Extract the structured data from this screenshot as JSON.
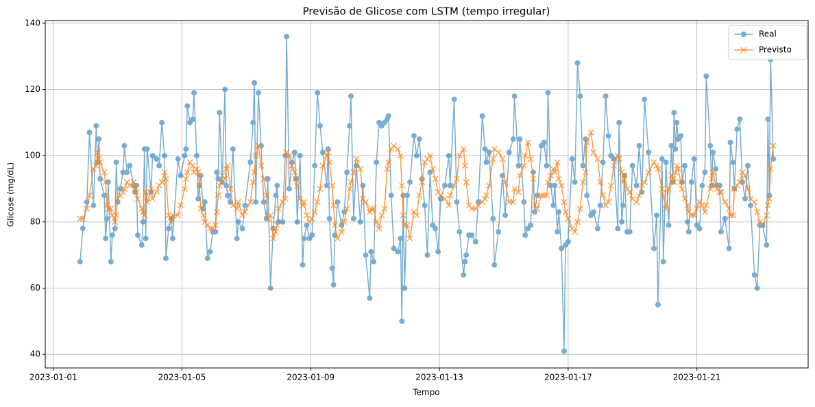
{
  "chart_data": {
    "type": "line",
    "title": "Previsão de Glicose com LSTM (tempo irregular)",
    "xlabel": "Tempo",
    "ylabel": "Glicose (mg/dL)",
    "x": [
      "2023-01-01 20:00",
      "2023-01-01 22:00",
      "2023-01-02 01:00",
      "2023-01-02 03:00",
      "2023-01-02 06:00",
      "2023-01-02 08:00",
      "2023-01-02 09:00",
      "2023-01-02 10:00",
      "2023-01-02 11:00",
      "2023-01-02 14:00",
      "2023-01-02 15:00",
      "2023-01-02 16:00",
      "2023-01-02 17:00",
      "2023-01-02 19:00",
      "2023-01-02 20:00",
      "2023-01-02 22:00",
      "2023-01-02 23:00",
      "2023-01-03 00:00",
      "2023-01-03 02:00",
      "2023-01-03 04:00",
      "2023-01-03 05:00",
      "2023-01-03 07:00",
      "2023-01-03 09:00",
      "2023-01-03 12:00",
      "2023-01-03 13:00",
      "2023-01-03 14:00",
      "2023-01-03 15:00",
      "2023-01-03 18:00",
      "2023-01-03 19:00",
      "2023-01-03 20:00",
      "2023-01-03 21:00",
      "2023-01-03 22:00",
      "2023-01-04 01:00",
      "2023-01-04 02:00",
      "2023-01-04 05:00",
      "2023-01-04 07:00",
      "2023-01-04 09:00",
      "2023-01-04 11:00",
      "2023-01-04 12:00",
      "2023-01-04 14:00",
      "2023-01-04 16:00",
      "2023-01-04 17:00",
      "2023-01-04 21:00",
      "2023-01-04 23:00",
      "2023-01-05 02:00",
      "2023-01-05 03:00",
      "2023-01-05 04:00",
      "2023-01-05 06:00",
      "2023-01-05 08:00",
      "2023-01-05 09:00",
      "2023-01-05 11:00",
      "2023-01-05 12:00",
      "2023-01-05 13:00",
      "2023-01-05 14:00",
      "2023-01-05 16:00",
      "2023-01-05 17:00",
      "2023-01-05 19:00",
      "2023-01-05 21:00",
      "2023-01-05 23:00",
      "2023-01-06 01:00",
      "2023-01-06 02:00",
      "2023-01-06 03:00",
      "2023-01-06 04:00",
      "2023-01-06 06:00",
      "2023-01-06 08:00",
      "2023-01-06 09:00",
      "2023-01-06 10:00",
      "2023-01-06 12:00",
      "2023-01-06 14:00",
      "2023-01-06 17:00",
      "2023-01-06 18:00",
      "2023-01-06 21:00",
      "2023-01-06 23:00",
      "2023-01-07 03:00",
      "2023-01-07 05:00",
      "2023-01-07 06:00",
      "2023-01-07 07:00",
      "2023-01-07 09:00",
      "2023-01-07 11:00",
      "2023-01-07 13:00",
      "2023-01-07 15:00",
      "2023-01-07 16:00",
      "2023-01-07 18:00",
      "2023-01-07 20:00",
      "2023-01-07 22:00",
      "2023-01-07 23:00",
      "2023-01-08 00:00",
      "2023-01-08 03:00",
      "2023-01-08 05:00",
      "2023-01-08 06:00",
      "2023-01-08 08:00",
      "2023-01-08 10:00",
      "2023-01-08 12:00",
      "2023-01-08 13:00",
      "2023-01-08 14:00",
      "2023-01-08 16:00",
      "2023-01-08 18:00",
      "2023-01-08 19:00",
      "2023-01-08 21:00",
      "2023-01-08 23:00",
      "2023-01-09 01:00",
      "2023-01-09 03:00",
      "2023-01-09 05:00",
      "2023-01-09 07:00",
      "2023-01-09 09:00",
      "2023-01-09 12:00",
      "2023-01-09 13:00",
      "2023-01-09 14:00",
      "2023-01-09 16:00",
      "2023-01-09 17:00",
      "2023-01-09 18:00",
      "2023-01-09 20:00",
      "2023-01-09 23:00",
      "2023-01-10 01:00",
      "2023-01-10 03:00",
      "2023-01-10 05:00",
      "2023-01-10 06:00",
      "2023-01-10 08:00",
      "2023-01-10 10:00",
      "2023-01-10 13:00",
      "2023-01-10 15:00",
      "2023-01-10 17:00",
      "2023-01-10 20:00",
      "2023-01-10 21:00",
      "2023-01-10 23:00",
      "2023-01-11 01:00",
      "2023-01-11 03:00",
      "2023-01-11 05:00",
      "2023-01-11 07:00",
      "2023-01-11 09:00",
      "2023-01-11 10:00",
      "2023-01-11 12:00",
      "2023-01-11 14:00",
      "2023-01-11 17:00",
      "2023-01-11 19:00",
      "2023-01-11 20:00",
      "2023-01-11 21:00",
      "2023-01-11 22:00",
      "2023-01-12 00:00",
      "2023-01-12 02:00",
      "2023-01-12 05:00",
      "2023-01-12 07:00",
      "2023-01-12 09:00",
      "2023-01-12 11:00",
      "2023-01-12 13:00",
      "2023-01-12 15:00",
      "2023-01-12 17:00",
      "2023-01-12 19:00",
      "2023-01-12 21:00",
      "2023-01-12 23:00",
      "2023-01-13 01:00",
      "2023-01-13 04:00",
      "2023-01-13 07:00",
      "2023-01-13 08:00",
      "2023-01-13 11:00",
      "2023-01-13 13:00",
      "2023-01-13 15:00",
      "2023-01-13 18:00",
      "2023-01-13 19:00",
      "2023-01-13 20:00",
      "2023-01-13 22:00",
      "2023-01-14 00:00",
      "2023-01-14 03:00",
      "2023-01-14 05:00",
      "2023-01-14 08:00",
      "2023-01-14 10:00",
      "2023-01-14 11:00",
      "2023-01-14 13:00",
      "2023-01-14 16:00",
      "2023-01-14 17:00",
      "2023-01-14 20:00",
      "2023-01-14 23:00",
      "2023-01-15 01:00",
      "2023-01-15 04:00",
      "2023-01-15 07:00",
      "2023-01-15 08:00",
      "2023-01-15 11:00",
      "2023-01-15 12:00",
      "2023-01-15 15:00",
      "2023-01-15 16:00",
      "2023-01-15 18:00",
      "2023-01-15 20:00",
      "2023-01-15 22:00",
      "2023-01-15 23:00",
      "2023-01-16 01:00",
      "2023-01-16 04:00",
      "2023-01-16 06:00",
      "2023-01-16 08:00",
      "2023-01-16 09:00",
      "2023-01-16 11:00",
      "2023-01-16 13:00",
      "2023-01-16 14:00",
      "2023-01-16 16:00",
      "2023-01-16 17:00",
      "2023-01-16 19:00",
      "2023-01-16 21:00",
      "2023-01-16 22:00",
      "2023-01-17 00:00",
      "2023-01-17 03:00",
      "2023-01-17 05:00",
      "2023-01-17 07:00",
      "2023-01-17 09:00",
      "2023-01-17 11:00",
      "2023-01-17 13:00",
      "2023-01-17 14:00",
      "2023-01-17 17:00",
      "2023-01-17 19:00",
      "2023-01-17 22:00",
      "2023-01-18 00:00",
      "2023-01-18 02:00",
      "2023-01-18 04:00",
      "2023-01-18 06:00",
      "2023-01-18 08:00",
      "2023-01-18 10:00",
      "2023-01-18 13:00",
      "2023-01-18 14:00",
      "2023-01-18 16:00",
      "2023-01-18 17:00",
      "2023-01-18 18:00",
      "2023-01-18 20:00",
      "2023-01-18 22:00",
      "2023-01-19 00:00",
      "2023-01-19 03:00",
      "2023-01-19 05:00",
      "2023-01-19 07:00",
      "2023-01-19 09:00",
      "2023-01-19 12:00",
      "2023-01-19 16:00",
      "2023-01-19 18:00",
      "2023-01-19 19:00",
      "2023-01-19 22:00",
      "2023-01-19 23:00",
      "2023-01-20 01:00",
      "2023-01-20 03:00",
      "2023-01-20 05:00",
      "2023-01-20 06:00",
      "2023-01-20 07:00",
      "2023-01-20 08:00",
      "2023-01-20 09:00",
      "2023-01-20 10:00",
      "2023-01-20 12:00",
      "2023-01-20 13:00",
      "2023-01-20 15:00",
      "2023-01-20 17:00",
      "2023-01-20 18:00",
      "2023-01-20 20:00",
      "2023-01-20 22:00",
      "2023-01-21 00:00",
      "2023-01-21 02:00",
      "2023-01-21 04:00",
      "2023-01-21 06:00",
      "2023-01-21 07:00",
      "2023-01-21 10:00",
      "2023-01-21 11:00",
      "2023-01-21 12:00",
      "2023-01-21 14:00",
      "2023-01-21 15:00",
      "2023-01-21 17:00",
      "2023-01-21 18:00",
      "2023-01-21 21:00",
      "2023-01-22 00:00",
      "2023-01-22 01:00",
      "2023-01-22 03:00",
      "2023-01-22 04:00",
      "2023-01-22 06:00",
      "2023-01-22 08:00",
      "2023-01-22 10:00",
      "2023-01-22 12:00",
      "2023-01-22 14:00",
      "2023-01-22 16:00",
      "2023-01-22 19:00",
      "2023-01-22 21:00",
      "2023-01-22 23:00",
      "2023-01-23 01:00",
      "2023-01-23 04:00",
      "2023-01-23 05:00",
      "2023-01-23 06:00",
      "2023-01-23 07:00",
      "2023-01-23 09:00"
    ],
    "series": [
      {
        "name": "Real",
        "color": "#1f77b4",
        "marker": "circle",
        "values": [
          68,
          78,
          86,
          107,
          85,
          109,
          98,
          105,
          93,
          88,
          75,
          81,
          92,
          68,
          76,
          78,
          98,
          86,
          90,
          95,
          103,
          95,
          97,
          91,
          89,
          91,
          76,
          73,
          80,
          102,
          75,
          102,
          89,
          100,
          99,
          97,
          110,
          100,
          69,
          78,
          81,
          75,
          99,
          94,
          100,
          102,
          115,
          110,
          111,
          119,
          100,
          87,
          91,
          94,
          84,
          86,
          69,
          71,
          77,
          77,
          95,
          93,
          113,
          92,
          120,
          91,
          88,
          86,
          102,
          75,
          80,
          78,
          85,
          98,
          110,
          122,
          86,
          119,
          103,
          86,
          81,
          93,
          60,
          78,
          88,
          91,
          80,
          80,
          100,
          136,
          90,
          98,
          101,
          93,
          80,
          100,
          67,
          75,
          79,
          75,
          76,
          97,
          119,
          109,
          101,
          91,
          102,
          81,
          66,
          61,
          76,
          86,
          79,
          83,
          95,
          109,
          118,
          81,
          97,
          80,
          91,
          70,
          57,
          71,
          68,
          98,
          110,
          109,
          110,
          111,
          112,
          88,
          72,
          71,
          75,
          50,
          88,
          60,
          88,
          92,
          106,
          100,
          105,
          93,
          85,
          70,
          95,
          79,
          78,
          71,
          87,
          91,
          100,
          91,
          117,
          86,
          77,
          64,
          68,
          70,
          76,
          76,
          74,
          86,
          112,
          102,
          98,
          101,
          81,
          67,
          77,
          94,
          82,
          101,
          105,
          118,
          97,
          105,
          86,
          76,
          78,
          79,
          95,
          83,
          88,
          103,
          104,
          97,
          119,
          91,
          85,
          91,
          77,
          83,
          72,
          41,
          73,
          74,
          99,
          92,
          128,
          118,
          97,
          105,
          88,
          82,
          83,
          78,
          85,
          98,
          118,
          106,
          100,
          99,
          78,
          110,
          80,
          85,
          94,
          77,
          77,
          97,
          91,
          103,
          89,
          117,
          101,
          72,
          82,
          55,
          99,
          68,
          98,
          79,
          103,
          92,
          113,
          102,
          110,
          105,
          106,
          92,
          97,
          80,
          77,
          92,
          99,
          79,
          78,
          91,
          95,
          124,
          103,
          91,
          101,
          96,
          91,
          91,
          77,
          81,
          72,
          104,
          98,
          90,
          108,
          111,
          92,
          87,
          97,
          85,
          64,
          60,
          79,
          79,
          73,
          111,
          88,
          129,
          99
        ]
      },
      {
        "name": "Previsto",
        "color": "#ff7f0e",
        "marker": "x",
        "values": [
          81,
          81,
          84,
          88,
          96,
          97,
          101,
          99,
          98,
          95,
          92,
          85,
          84,
          84,
          82,
          80,
          82,
          87,
          88,
          89,
          90,
          92,
          91,
          92,
          90,
          89,
          87,
          84,
          83,
          82,
          89,
          86,
          90,
          87,
          89,
          91,
          92,
          95,
          93,
          82,
          80,
          82,
          82,
          85,
          90,
          93,
          95,
          98,
          97,
          95,
          96,
          95,
          91,
          84,
          82,
          80,
          79,
          78,
          78,
          79,
          83,
          88,
          91,
          94,
          93,
          96,
          97,
          90,
          85,
          84,
          86,
          82,
          83,
          86,
          92,
          95,
          100,
          103,
          97,
          93,
          88,
          81,
          82,
          75,
          77,
          79,
          84,
          86,
          87,
          101,
          100,
          97,
          95,
          93,
          91,
          87,
          85,
          86,
          82,
          80,
          81,
          83,
          86,
          90,
          97,
          100,
          101,
          98,
          91,
          85,
          79,
          75,
          77,
          80,
          84,
          90,
          92,
          95,
          99,
          96,
          87,
          86,
          83,
          84,
          84,
          80,
          78,
          82,
          84,
          96,
          98,
          102,
          103,
          102,
          100,
          91,
          82,
          79,
          79,
          75,
          83,
          82,
          88,
          92,
          98,
          99,
          100,
          96,
          93,
          89,
          88,
          87,
          85,
          88,
          91,
          93,
          100,
          102,
          97,
          92,
          85,
          84,
          84,
          85,
          86,
          87,
          88,
          91,
          99,
          102,
          101,
          99,
          92,
          86,
          86,
          90,
          89,
          94,
          97,
          100,
          104,
          99,
          93,
          85,
          84,
          88,
          88,
          88,
          92,
          94,
          96,
          95,
          98,
          93,
          91,
          86,
          83,
          81,
          78,
          77,
          80,
          84,
          92,
          95,
          104,
          107,
          101,
          99,
          92,
          88,
          85,
          86,
          91,
          97,
          100,
          99,
          95,
          92,
          94,
          90,
          89,
          87,
          86,
          88,
          91,
          92,
          95,
          98,
          97,
          96,
          90,
          88,
          84,
          90,
          94,
          93,
          92,
          95,
          97,
          96,
          92,
          90,
          87,
          85,
          83,
          82,
          82,
          84,
          86,
          85,
          83,
          85,
          90,
          93,
          95,
          91,
          90,
          89,
          89,
          86,
          84,
          82,
          82,
          90,
          91,
          92,
          95,
          94,
          90,
          87,
          86,
          83,
          80,
          79,
          82,
          85,
          87,
          96,
          103
        ]
      }
    ],
    "xlim": [
      "2022-12-31 18:00",
      "2023-01-24 11:00"
    ],
    "xticks": [
      "2023-01-01",
      "2023-01-05",
      "2023-01-09",
      "2023-01-13",
      "2023-01-17",
      "2023-01-21"
    ],
    "ylim": [
      35.9,
      140.8
    ],
    "yticks": [
      40,
      60,
      80,
      100,
      120,
      140
    ],
    "grid": true,
    "legend": "upper right"
  }
}
